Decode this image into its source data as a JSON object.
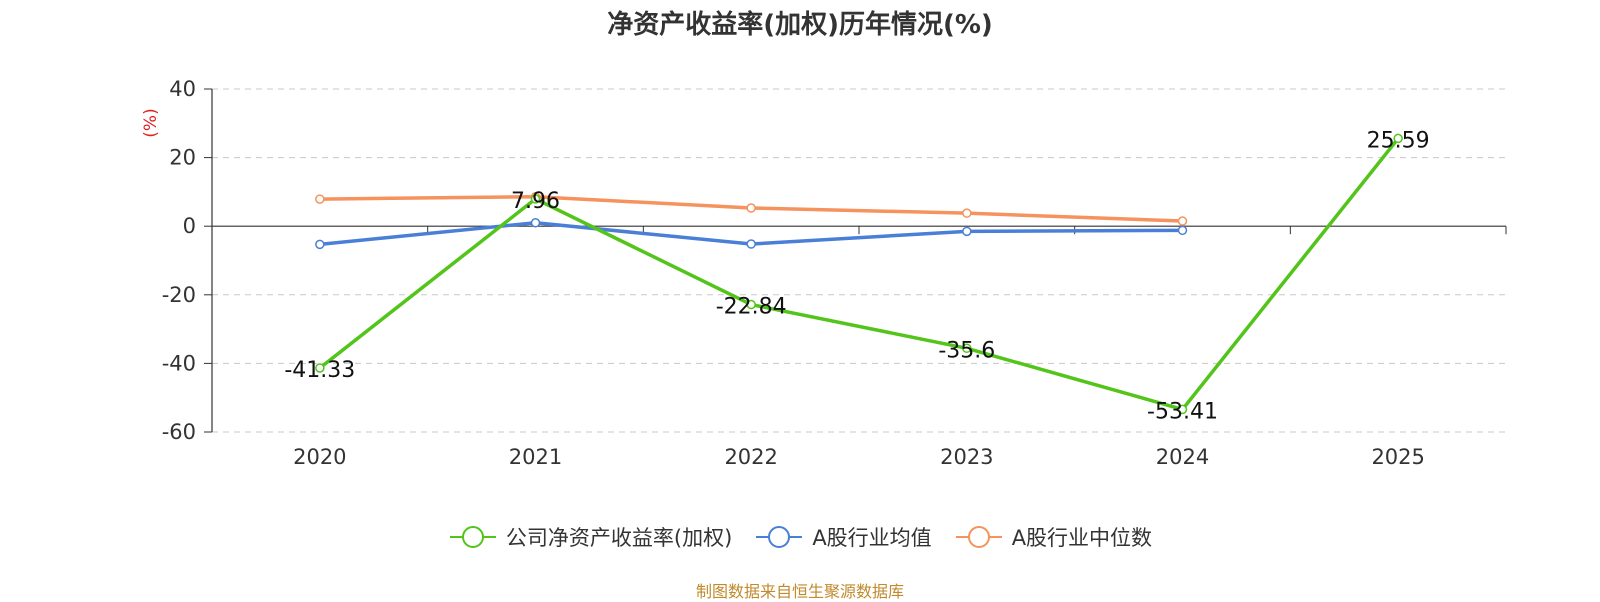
{
  "chart_data": {
    "type": "line",
    "title": "净资产收益率(加权)历年情况(%)",
    "ylabel": "(%)",
    "categories": [
      "2020",
      "2021",
      "2022",
      "2023",
      "2024",
      "2025"
    ],
    "ylim": [
      -60,
      40
    ],
    "yticks": [
      40,
      20,
      0,
      -20,
      -40,
      -60
    ],
    "grid": true,
    "legend_position": "bottom",
    "series": [
      {
        "name": "公司净资产收益率(加权)",
        "color": "#52c41a",
        "values": [
          -41.33,
          7.96,
          -22.84,
          -35.6,
          -53.41,
          25.59
        ],
        "labels": [
          "-41.33",
          "7.96",
          "-22.84",
          "-35.6",
          "-53.41",
          "25.59"
        ]
      },
      {
        "name": "A股行业均值",
        "color": "#4a7fd8",
        "values": [
          -5.3,
          1.0,
          -5.2,
          -1.5,
          -1.2,
          null
        ]
      },
      {
        "name": "A股行业中位数",
        "color": "#f5925e",
        "values": [
          7.9,
          8.6,
          5.3,
          3.8,
          1.5,
          null
        ]
      }
    ]
  },
  "source": "制图数据来自恒生聚源数据库"
}
